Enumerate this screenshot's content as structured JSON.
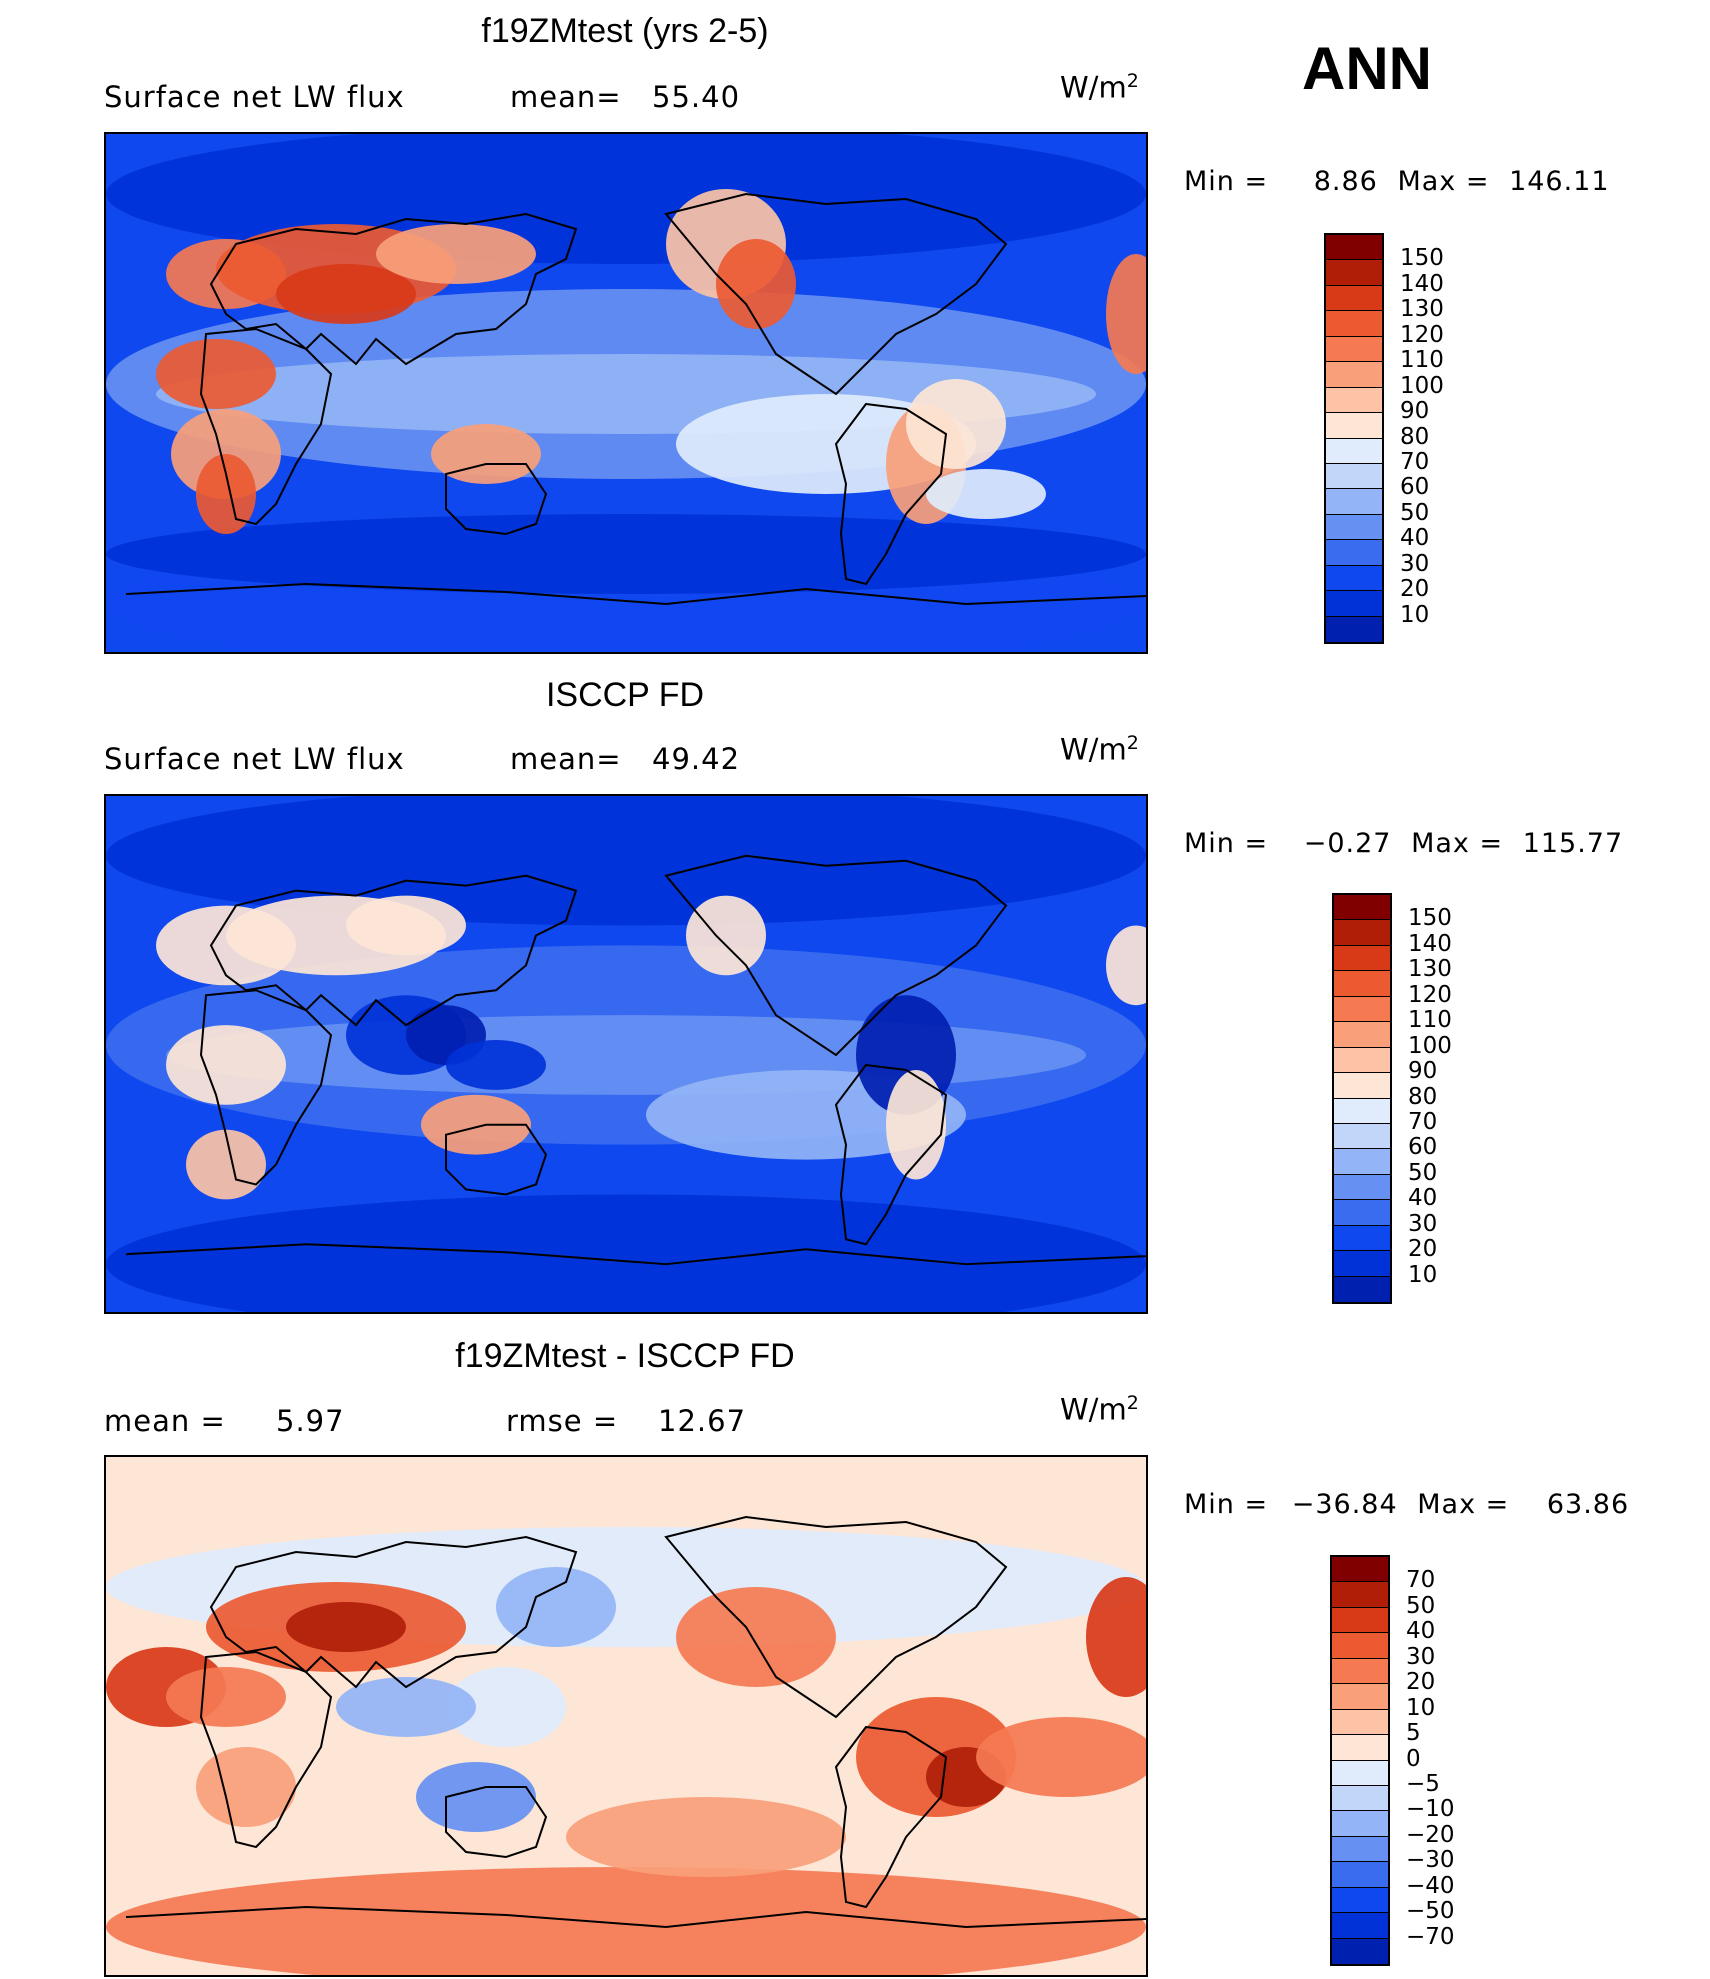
{
  "season": "ANN",
  "colors": {
    "full_scale": [
      "#000a80",
      "#0020b0",
      "#0032d8",
      "#1048f0",
      "#3a6cf0",
      "#6690f2",
      "#93b4f6",
      "#c2d6fa",
      "#e0ecfc",
      "#fde6d6",
      "#fcc3a6",
      "#f9a07a",
      "#f57a52",
      "#ec5a32",
      "#d83a18",
      "#b01e08",
      "#800000"
    ],
    "diff_scale": [
      "#000a80",
      "#0020b0",
      "#0032d8",
      "#1048f0",
      "#3a6cf0",
      "#6690f2",
      "#93b4f6",
      "#c2d6fa",
      "#e0ecfc",
      "#fde6d6",
      "#fcc3a6",
      "#f9a07a",
      "#f57a52",
      "#ec5a32",
      "#d83a18",
      "#b01e08",
      "#800000"
    ],
    "land_outline": "#000000"
  },
  "panels": [
    {
      "id": "test",
      "title": "f19ZMtest (yrs 2-5)",
      "left_label": "Surface net LW flux",
      "stat_label": "mean=",
      "stat_value": "55.40",
      "units_base": "W/m",
      "units_exp": "2",
      "min_label": "Min =",
      "min_value": "8.86",
      "max_label": "Max =",
      "max_value": "146.11",
      "levels": [
        "150",
        "140",
        "130",
        "120",
        "110",
        "100",
        "90",
        "80",
        "70",
        "60",
        "50",
        "40",
        "30",
        "20",
        "10"
      ],
      "background_level": 3
    },
    {
      "id": "obs",
      "title": "ISCCP FD",
      "left_label": "Surface net LW flux",
      "stat_label": "mean=",
      "stat_value": "49.42",
      "units_base": "W/m",
      "units_exp": "2",
      "min_label": "Min =",
      "min_value": "−0.27",
      "max_label": "Max =",
      "max_value": "115.77",
      "levels": [
        "150",
        "140",
        "130",
        "120",
        "110",
        "100",
        "90",
        "80",
        "70",
        "60",
        "50",
        "40",
        "30",
        "20",
        "10"
      ],
      "background_level": 3
    },
    {
      "id": "diff",
      "title": "f19ZMtest - ISCCP FD",
      "left_label": "mean =",
      "left_value": "5.97",
      "stat_label": "rmse =",
      "stat_value": "12.67",
      "units_base": "W/m",
      "units_exp": "2",
      "min_label": "Min =",
      "min_value": "−36.84",
      "max_label": "Max =",
      "max_value": "63.86",
      "levels": [
        "70",
        "50",
        "40",
        "30",
        "20",
        "10",
        "5",
        "0",
        "−5",
        "−10",
        "−20",
        "−30",
        "−40",
        "−50",
        "−70"
      ],
      "background_level": 9
    }
  ]
}
